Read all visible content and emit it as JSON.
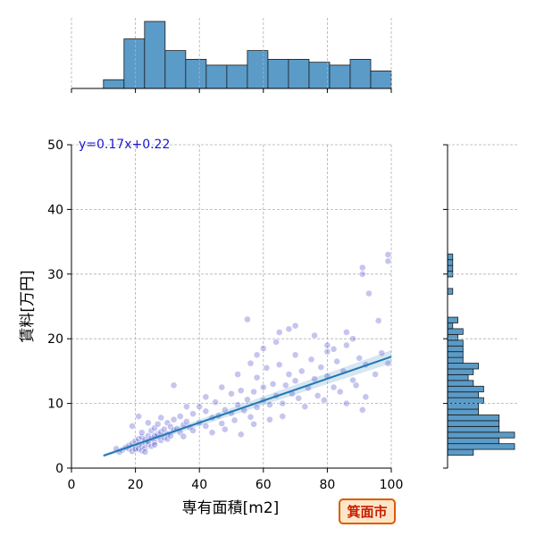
{
  "chart_data": {
    "type": "scatter",
    "xlabel": "専有面積[m2]",
    "ylabel": "賃料[万円]",
    "xlim": [
      0,
      100
    ],
    "ylim": [
      0,
      50
    ],
    "x_ticks": [
      0,
      20,
      40,
      60,
      80,
      100
    ],
    "y_ticks": [
      0,
      10,
      20,
      30,
      40,
      50
    ],
    "grid": true,
    "annotation": "y=0.17x+0.22",
    "badge": "箕面市",
    "regression": {
      "slope": 0.17,
      "intercept": 0.22,
      "x_range": [
        10,
        100
      ]
    },
    "point_color": "#5a5ad2",
    "line_color": "#1f77b4",
    "hist_color": "#5b9bc8",
    "points": [
      [
        16,
        2.8
      ],
      [
        17,
        3.2
      ],
      [
        18,
        3.0
      ],
      [
        18,
        3.5
      ],
      [
        19,
        2.6
      ],
      [
        19,
        3.8
      ],
      [
        20,
        3.1
      ],
      [
        20,
        4.2
      ],
      [
        20,
        2.9
      ],
      [
        21,
        3.6
      ],
      [
        21,
        4.5
      ],
      [
        21,
        3.0
      ],
      [
        22,
        3.3
      ],
      [
        22,
        4.8
      ],
      [
        22,
        2.7
      ],
      [
        22,
        5.5
      ],
      [
        23,
        3.9
      ],
      [
        23,
        4.4
      ],
      [
        23,
        3.1
      ],
      [
        24,
        3.7
      ],
      [
        24,
        5.0
      ],
      [
        24,
        4.1
      ],
      [
        25,
        3.4
      ],
      [
        25,
        5.8
      ],
      [
        25,
        4.6
      ],
      [
        26,
        4.0
      ],
      [
        26,
        6.2
      ],
      [
        26,
        3.6
      ],
      [
        27,
        4.9
      ],
      [
        27,
        5.3
      ],
      [
        27,
        6.8
      ],
      [
        28,
        4.3
      ],
      [
        28,
        5.6
      ],
      [
        29,
        4.7
      ],
      [
        29,
        6.0
      ],
      [
        30,
        5.2
      ],
      [
        30,
        7.0
      ],
      [
        30,
        4.5
      ],
      [
        31,
        6.4
      ],
      [
        31,
        5.0
      ],
      [
        32,
        5.9
      ],
      [
        32,
        7.5
      ],
      [
        33,
        6.1
      ],
      [
        34,
        5.5
      ],
      [
        34,
        8.0
      ],
      [
        35,
        6.7
      ],
      [
        35,
        4.9
      ],
      [
        36,
        7.2
      ],
      [
        37,
        6.3
      ],
      [
        38,
        8.4
      ],
      [
        38,
        5.8
      ],
      [
        40,
        7.0
      ],
      [
        40,
        9.5
      ],
      [
        42,
        6.5
      ],
      [
        42,
        8.8
      ],
      [
        44,
        7.8
      ],
      [
        45,
        10.2
      ],
      [
        46,
        8.1
      ],
      [
        47,
        6.9
      ],
      [
        48,
        9.0
      ],
      [
        50,
        8.5
      ],
      [
        50,
        11.5
      ],
      [
        51,
        7.4
      ],
      [
        52,
        9.8
      ],
      [
        53,
        12.0
      ],
      [
        54,
        8.9
      ],
      [
        55,
        10.6
      ],
      [
        56,
        7.9
      ],
      [
        57,
        11.8
      ],
      [
        58,
        9.4
      ],
      [
        58,
        14.0
      ],
      [
        60,
        10.5
      ],
      [
        60,
        12.5
      ],
      [
        61,
        15.5
      ],
      [
        62,
        9.8
      ],
      [
        63,
        13.0
      ],
      [
        64,
        11.2
      ],
      [
        65,
        16.0
      ],
      [
        66,
        10.0
      ],
      [
        67,
        12.8
      ],
      [
        68,
        14.5
      ],
      [
        69,
        11.5
      ],
      [
        70,
        13.5
      ],
      [
        70,
        17.5
      ],
      [
        71,
        10.8
      ],
      [
        72,
        15.0
      ],
      [
        74,
        12.4
      ],
      [
        75,
        16.8
      ],
      [
        76,
        13.8
      ],
      [
        77,
        11.2
      ],
      [
        78,
        15.6
      ],
      [
        80,
        14.2
      ],
      [
        80,
        18.0
      ],
      [
        82,
        12.5
      ],
      [
        83,
        16.5
      ],
      [
        85,
        15.0
      ],
      [
        86,
        19.0
      ],
      [
        88,
        13.6
      ],
      [
        90,
        17.0
      ],
      [
        91,
        9.0
      ],
      [
        92,
        16.0
      ],
      [
        95,
        14.5
      ],
      [
        97,
        17.8
      ],
      [
        99,
        16.2
      ],
      [
        55,
        23.0
      ],
      [
        65,
        21.0
      ],
      [
        70,
        22.0
      ],
      [
        91,
        31.0
      ],
      [
        93,
        27.0
      ],
      [
        99,
        33.0
      ],
      [
        99,
        32.0
      ],
      [
        91,
        30.0
      ],
      [
        96,
        22.8
      ],
      [
        80,
        19.0
      ],
      [
        88,
        20.0
      ],
      [
        82,
        18.4
      ],
      [
        92,
        11.0
      ],
      [
        86,
        10.0
      ],
      [
        60,
        18.5
      ],
      [
        58,
        17.5
      ],
      [
        15,
        2.5
      ],
      [
        14,
        3.0
      ],
      [
        19,
        6.5
      ],
      [
        21,
        8.0
      ],
      [
        24,
        7.0
      ],
      [
        28,
        7.8
      ],
      [
        32,
        12.8
      ],
      [
        36,
        9.5
      ],
      [
        26,
        5.0
      ],
      [
        23,
        2.5
      ],
      [
        44,
        5.5
      ],
      [
        48,
        6.0
      ],
      [
        53,
        5.2
      ],
      [
        57,
        6.8
      ],
      [
        62,
        7.5
      ],
      [
        66,
        8.0
      ],
      [
        73,
        9.5
      ],
      [
        79,
        10.5
      ],
      [
        84,
        11.8
      ],
      [
        89,
        12.8
      ],
      [
        42,
        11.0
      ],
      [
        47,
        12.5
      ],
      [
        52,
        14.5
      ],
      [
        56,
        16.2
      ],
      [
        64,
        19.5
      ],
      [
        68,
        21.5
      ],
      [
        76,
        20.5
      ],
      [
        86,
        21.0
      ]
    ]
  }
}
